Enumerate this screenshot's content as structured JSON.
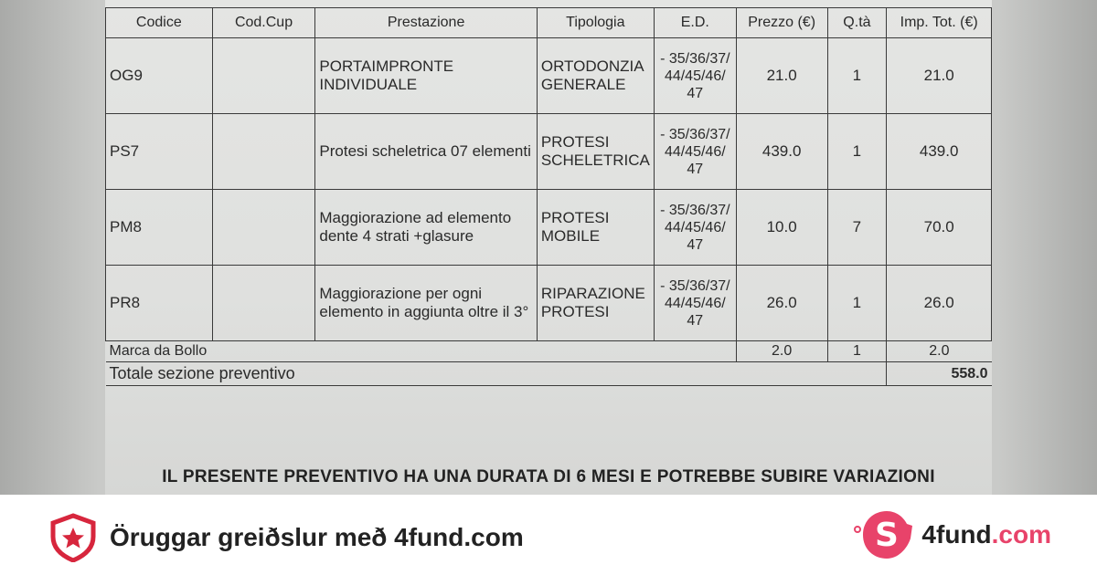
{
  "document": {
    "headers": [
      "Codice",
      "Cod.Cup",
      "Prestazione",
      "Tipologia",
      "E.D.",
      "Prezzo (€)",
      "Q.tà",
      "Imp. Tot. (€)"
    ],
    "rows": [
      {
        "codice": "OG9",
        "cup": "",
        "prestazione": "PORTAIMPRONTE INDIVIDUALE",
        "tipologia": "ORTODONZIA GENERALE",
        "ed": "- 35/36/37/ 44/45/46/ 47",
        "prezzo": "21.0",
        "qta": "1",
        "imp": "21.0"
      },
      {
        "codice": "PS7",
        "cup": "",
        "prestazione": "Protesi scheletrica 07 elementi",
        "tipologia": "PROTESI SCHELETRICA",
        "ed": "- 35/36/37/ 44/45/46/ 47",
        "prezzo": "439.0",
        "qta": "1",
        "imp": "439.0"
      },
      {
        "codice": "PM8",
        "cup": "",
        "prestazione": "Maggiorazione ad elemento dente 4 strati +glasure",
        "tipologia": "PROTESI MOBILE",
        "ed": "- 35/36/37/ 44/45/46/ 47",
        "prezzo": "10.0",
        "qta": "7",
        "imp": "70.0"
      },
      {
        "codice": "PR8",
        "cup": "",
        "prestazione": "Maggiorazione per ogni elemento in aggiunta oltre il 3°",
        "tipologia": "RIPARAZIONE PROTESI",
        "ed": "- 35/36/37/ 44/45/46/ 47",
        "prezzo": "26.0",
        "qta": "1",
        "imp": "26.0"
      }
    ],
    "bollo": {
      "label": "Marca da Bollo",
      "prezzo": "2.0",
      "qta": "1",
      "imp": "2.0"
    },
    "totale": {
      "label": "Totale sezione preventivo",
      "value": "558.0"
    },
    "note": "IL PRESENTE PREVENTIVO HA UNA DURATA DI 6 MESI E POTREBBE SUBIRE VARIAZIONI"
  },
  "footer": {
    "secure_text": "Öruggar greiðslur með 4fund.com",
    "brand_name": "4fund",
    "brand_tld": ".com",
    "accent": "#e8436a",
    "shield_icon": "shield-star-icon",
    "logo_icon": "piggy-bank-dollar-icon"
  }
}
